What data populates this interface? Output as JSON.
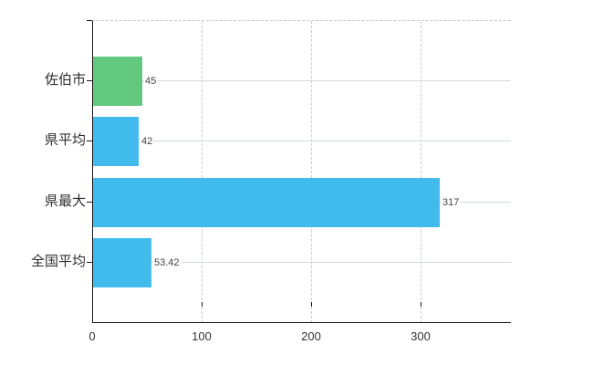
{
  "chart_data": {
    "type": "bar",
    "orientation": "horizontal",
    "title": "",
    "xlabel": "",
    "ylabel": "",
    "categories": [
      "佐伯市",
      "県平均",
      "県最大",
      "全国平均"
    ],
    "values": [
      45,
      42,
      317,
      53.42
    ],
    "value_labels": [
      "45",
      "42",
      "317",
      "53.42"
    ],
    "bar_colors": [
      "#62c87d",
      "#41bbec",
      "#41bbec",
      "#41bbec"
    ],
    "x_ticks": [
      0,
      100,
      200,
      300
    ],
    "x_tick_labels": [
      "0",
      "100",
      "200",
      "300"
    ],
    "xlim": [
      0,
      382.5
    ],
    "grid": true,
    "legend": false,
    "plot_border_top": "dashed"
  },
  "colors": {
    "bar_blue": "#41bbec",
    "bar_green": "#62c87d",
    "axis": "#1a1a1a",
    "grid_horizontal": "#d2dcd2",
    "grid_vertical": "#c7ccd8",
    "top_border": "#ccc6cc",
    "category_text": "#2e2e2e",
    "value_text": "#444444",
    "background": "#ffffff"
  }
}
